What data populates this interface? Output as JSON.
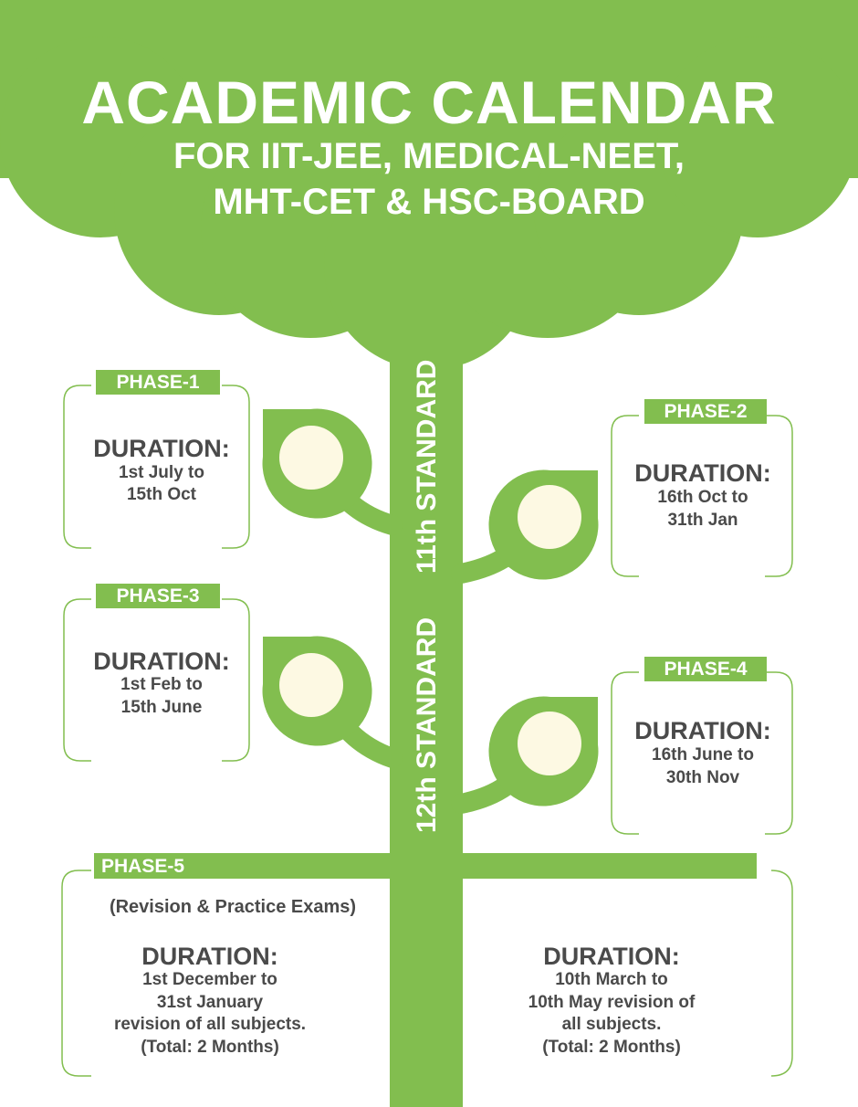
{
  "header": {
    "title": "ACADEMIC CALENDAR",
    "subtitle_line1": "FOR IIT-JEE, MEDICAL-NEET,",
    "subtitle_line2": "MHT-CET & HSC-BOARD"
  },
  "trunk": {
    "label_11": "11th STANDARD",
    "label_12": "12th STANDARD"
  },
  "phases": [
    {
      "tag": "PHASE-1",
      "duration_label": "DURATION:",
      "line1": "1st July to",
      "line2": "15th Oct"
    },
    {
      "tag": "PHASE-2",
      "duration_label": "DURATION:",
      "line1": "16th Oct to",
      "line2": "31th Jan"
    },
    {
      "tag": "PHASE-3",
      "duration_label": "DURATION:",
      "line1": "1st Feb to",
      "line2": "15th June"
    },
    {
      "tag": "PHASE-4",
      "duration_label": "DURATION:",
      "line1": "16th June to",
      "line2": "30th Nov"
    }
  ],
  "phase5": {
    "tag": "PHASE-5",
    "note": "(Revision & Practice Exams)",
    "left": {
      "duration_label": "DURATION:",
      "line1": "1st December  to",
      "line2": "31st January",
      "line3": "revision of all subjects.",
      "line4": "(Total: 2 Months)"
    },
    "right": {
      "duration_label": "DURATION:",
      "line1": "10th March to",
      "line2": "10th May revision of",
      "line3": "all subjects.",
      "line4": "(Total: 2 Months)"
    }
  },
  "colors": {
    "green": "#82be4f",
    "cream": "#fdf9e3",
    "text": "#4a4a4a"
  }
}
